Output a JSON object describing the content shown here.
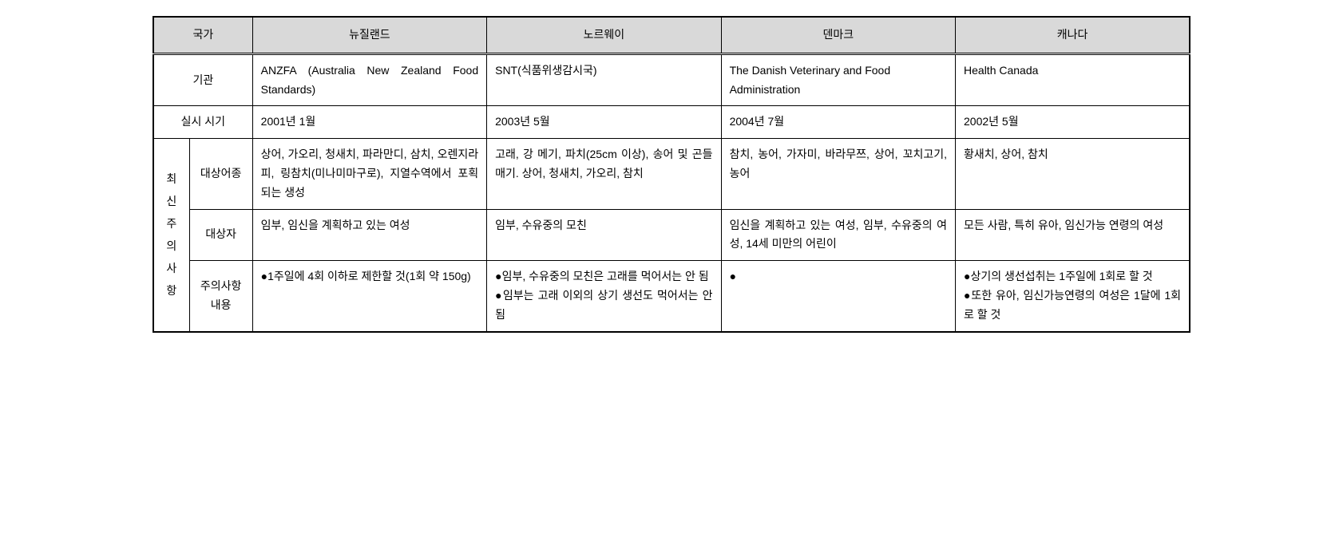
{
  "headers": {
    "country": "국가",
    "col1": "뉴질랜드",
    "col2": "노르웨이",
    "col3": "덴마크",
    "col4": "캐나다"
  },
  "rows": {
    "agency": {
      "label": "기관",
      "nz": "ANZFA (Australia New Zealand Food Standards)",
      "no": "SNT(식품위생감시국)",
      "dk": "The Danish Veterinary and Food Administration",
      "ca": "Health Canada"
    },
    "timing": {
      "label": "실시 시기",
      "nz": "2001년 1월",
      "no": "2003년 5월",
      "dk": "2004년 7월",
      "ca": "2002년 5월"
    },
    "warnings": {
      "group_label": "최신주의사항",
      "species": {
        "label": "대상어종",
        "nz": "상어, 가오리, 청새치, 파라만디, 삼치, 오렌지라피, 링참치(미나미마구로), 지열수역에서 포획되는 생성",
        "no": "고래, 강 메기, 파치(25cm 이상), 송어 및 곤들매기. 상어, 청새치, 가오리, 참치",
        "dk": "참치, 농어, 가자미, 바라무쯔, 상어, 꼬치고기, 농어",
        "ca": "황새치, 상어, 참치"
      },
      "target": {
        "label": "대상자",
        "nz": "임부, 임신을 계획하고 있는 여성",
        "no": "임부, 수유중의 모친",
        "dk": "임신을 계획하고 있는 여성, 임부, 수유중의 여성, 14세 미만의 어린이",
        "ca": "모든 사람, 특히 유아, 임신가능 연령의 여성"
      },
      "content": {
        "label": "주의사항내용",
        "nz": "●1주일에 4회 이하로 제한할 것(1회 약 150g)",
        "no": "●임부, 수유중의 모친은 고래를 먹어서는 안 됨\n●임부는 고래 이외의 상기 생선도 먹어서는 안 됨",
        "dk": "●",
        "ca": "●상기의 생선섭취는 1주일에 1회로 할 것\n●또한 유아, 임신가능연령의 여성은 1달에 1회로 할 것"
      }
    }
  },
  "colors": {
    "header_bg": "#d9d9d9",
    "border": "#000000",
    "background": "#ffffff"
  },
  "col_widths": {
    "label1": 40,
    "label2": 60,
    "data": 260
  }
}
